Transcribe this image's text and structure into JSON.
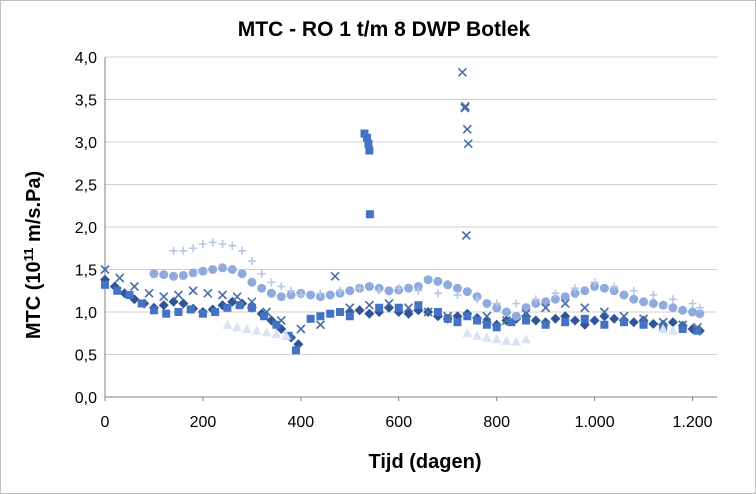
{
  "chart_data": {
    "type": "scatter",
    "title": "MTC - RO 1 t/m 8 DWP Botlek",
    "xlabel": "Tijd (dagen)",
    "ylabel_main": "MTC (10",
    "ylabel_sup": "11",
    "ylabel_tail": " m/s.Pa)",
    "xlim": [
      0,
      1250
    ],
    "ylim": [
      0,
      4.0
    ],
    "x_ticks": [
      0,
      200,
      400,
      600,
      800,
      1000,
      1200
    ],
    "x_tick_labels": [
      "0",
      "200",
      "400",
      "600",
      "800",
      "1.000",
      "1.200"
    ],
    "y_ticks": [
      0,
      0.5,
      1.0,
      1.5,
      2.0,
      2.5,
      3.0,
      3.5,
      4.0
    ],
    "y_tick_labels": [
      "0,0",
      "0,5",
      "1,0",
      "1,5",
      "2,0",
      "2,5",
      "3,0",
      "3,5",
      "4,0"
    ],
    "grid": "horizontal",
    "legend": "none",
    "series": [
      {
        "color": "#2f5597",
        "marker": "diamond",
        "x": [
          0,
          20,
          40,
          60,
          80,
          100,
          120,
          140,
          160,
          180,
          200,
          220,
          240,
          260,
          280,
          300,
          320,
          340,
          360,
          380,
          395,
          500,
          520,
          540,
          560,
          580,
          600,
          620,
          640,
          660,
          680,
          700,
          720,
          740,
          760,
          780,
          800,
          820,
          840,
          860,
          880,
          900,
          920,
          940,
          960,
          980,
          1000,
          1020,
          1040,
          1060,
          1080,
          1100,
          1120,
          1140,
          1160,
          1180,
          1200,
          1215
        ],
        "y": [
          1.38,
          1.3,
          1.22,
          1.15,
          1.1,
          1.05,
          1.08,
          1.12,
          1.1,
          1.04,
          1.0,
          1.03,
          1.08,
          1.12,
          1.1,
          1.05,
          0.98,
          0.9,
          0.8,
          0.7,
          0.62,
          1.0,
          1.02,
          0.98,
          1.0,
          1.05,
          1.0,
          0.98,
          1.02,
          1.0,
          0.95,
          0.92,
          0.95,
          0.98,
          0.93,
          0.88,
          0.85,
          0.9,
          0.92,
          0.95,
          0.9,
          0.88,
          0.92,
          0.95,
          0.9,
          0.85,
          0.9,
          0.95,
          0.92,
          0.9,
          0.88,
          0.9,
          0.86,
          0.85,
          0.88,
          0.84,
          0.8,
          0.78
        ]
      },
      {
        "color": "#4472c4",
        "marker": "square",
        "x": [
          0,
          25,
          50,
          75,
          100,
          125,
          150,
          175,
          200,
          225,
          250,
          275,
          300,
          325,
          350,
          375,
          390,
          420,
          440,
          460,
          480,
          500,
          530,
          535,
          538,
          540,
          541,
          560,
          600,
          640,
          680,
          700,
          720,
          740,
          760,
          780,
          800,
          830,
          860,
          900,
          940,
          980,
          1020,
          1060,
          1100,
          1140,
          1180,
          1210
        ],
        "y": [
          1.32,
          1.25,
          1.2,
          1.1,
          1.02,
          0.98,
          1.0,
          1.03,
          0.98,
          1.0,
          1.05,
          1.08,
          1.05,
          0.95,
          0.85,
          0.72,
          0.55,
          0.92,
          0.95,
          0.98,
          1.0,
          0.95,
          3.1,
          3.05,
          2.98,
          2.9,
          2.15,
          1.05,
          1.05,
          1.08,
          1.0,
          0.92,
          0.88,
          0.95,
          0.9,
          0.85,
          0.82,
          0.88,
          0.9,
          0.85,
          0.88,
          0.92,
          0.85,
          0.88,
          0.85,
          0.82,
          0.8,
          0.78
        ]
      },
      {
        "color": "#8faadc",
        "marker": "circle",
        "x": [
          100,
          120,
          140,
          160,
          180,
          200,
          220,
          240,
          260,
          280,
          300,
          320,
          340,
          360,
          380,
          400,
          420,
          440,
          460,
          480,
          500,
          520,
          540,
          560,
          580,
          600,
          620,
          640,
          660,
          680,
          700,
          720,
          740,
          760,
          780,
          800,
          820,
          840,
          860,
          880,
          900,
          920,
          940,
          960,
          980,
          1000,
          1020,
          1040,
          1060,
          1080,
          1100,
          1120,
          1140,
          1160,
          1180,
          1200,
          1215
        ],
        "y": [
          1.45,
          1.44,
          1.42,
          1.43,
          1.46,
          1.48,
          1.5,
          1.52,
          1.5,
          1.45,
          1.35,
          1.28,
          1.22,
          1.18,
          1.2,
          1.22,
          1.2,
          1.18,
          1.2,
          1.22,
          1.25,
          1.28,
          1.3,
          1.28,
          1.25,
          1.26,
          1.28,
          1.3,
          1.38,
          1.36,
          1.32,
          1.28,
          1.24,
          1.18,
          1.1,
          1.05,
          1.0,
          0.95,
          1.05,
          1.1,
          1.12,
          1.15,
          1.18,
          1.22,
          1.25,
          1.3,
          1.28,
          1.25,
          1.2,
          1.15,
          1.12,
          1.1,
          1.08,
          1.05,
          1.02,
          1.0,
          0.98
        ]
      },
      {
        "color": "#b4c7e7",
        "marker": "plus",
        "x": [
          140,
          160,
          180,
          200,
          220,
          240,
          260,
          280,
          300,
          320,
          340,
          360,
          380,
          400,
          440,
          480,
          520,
          560,
          600,
          640,
          680,
          720,
          760,
          800,
          840,
          880,
          920,
          960,
          1000,
          1040,
          1080,
          1120,
          1160,
          1200,
          1215
        ],
        "y": [
          1.72,
          1.72,
          1.75,
          1.8,
          1.82,
          1.8,
          1.78,
          1.72,
          1.6,
          1.45,
          1.35,
          1.3,
          1.25,
          1.2,
          1.22,
          1.25,
          1.28,
          1.25,
          1.28,
          1.25,
          1.22,
          1.2,
          1.15,
          1.1,
          1.1,
          1.15,
          1.22,
          1.28,
          1.35,
          1.3,
          1.25,
          1.2,
          1.15,
          1.1,
          1.05
        ]
      },
      {
        "color": "#4a6fa8",
        "marker": "x",
        "x": [
          0,
          30,
          60,
          90,
          120,
          150,
          180,
          210,
          240,
          270,
          300,
          330,
          360,
          400,
          440,
          470,
          500,
          540,
          580,
          620,
          660,
          700,
          730,
          735,
          736,
          740,
          742,
          738,
          780,
          820,
          860,
          900,
          940,
          980,
          1020,
          1060,
          1100,
          1140,
          1180,
          1210
        ],
        "y": [
          1.5,
          1.4,
          1.3,
          1.22,
          1.18,
          1.2,
          1.25,
          1.22,
          1.2,
          1.18,
          1.12,
          1.0,
          0.9,
          0.8,
          0.85,
          1.42,
          1.05,
          1.08,
          1.1,
          1.05,
          1.0,
          0.95,
          3.82,
          3.4,
          3.42,
          3.15,
          2.98,
          1.9,
          0.95,
          0.9,
          0.98,
          1.05,
          1.1,
          1.05,
          1.0,
          0.95,
          0.92,
          0.88,
          0.85,
          0.82
        ]
      },
      {
        "color": "#dae3f3",
        "marker": "triangle",
        "x": [
          250,
          270,
          290,
          310,
          330,
          350,
          370,
          740,
          760,
          780,
          800,
          820,
          840,
          860,
          1140,
          1160
        ],
        "y": [
          0.85,
          0.82,
          0.8,
          0.78,
          0.76,
          0.74,
          0.72,
          0.75,
          0.72,
          0.7,
          0.68,
          0.66,
          0.65,
          0.68,
          0.8,
          0.78
        ]
      }
    ]
  }
}
